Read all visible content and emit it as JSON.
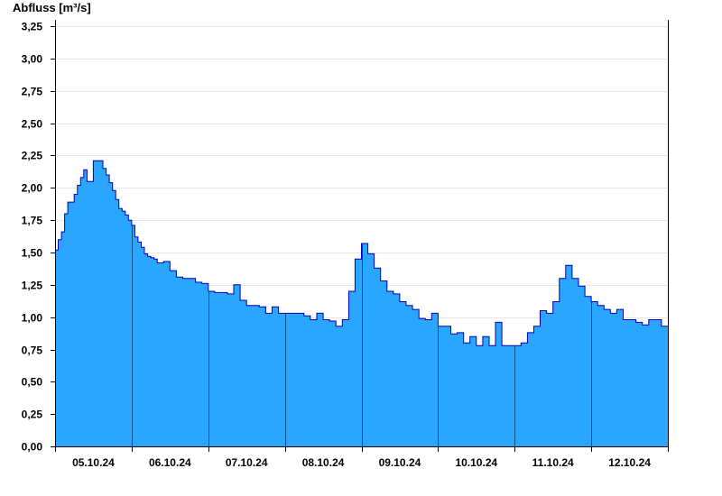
{
  "chart_data": {
    "type": "area",
    "title": "",
    "ylabel": "Abfluss [m³/s]",
    "xlabel": "",
    "ylim": [
      0,
      3.3
    ],
    "yticks": [
      0,
      0.25,
      0.5,
      0.75,
      1.0,
      1.25,
      1.5,
      1.75,
      2.0,
      2.25,
      2.5,
      2.75,
      3.0,
      3.25
    ],
    "ytick_labels": [
      "0,00",
      "0,25",
      "0,50",
      "0,75",
      "1,00",
      "1,25",
      "1,50",
      "1,75",
      "2,00",
      "2,25",
      "2,50",
      "2,75",
      "3,00",
      "3,25"
    ],
    "xlim": [
      "2024-10-04T12:00",
      "2024-10-12T12:00"
    ],
    "xtick_labels": [
      "05.10.24",
      "06.10.24",
      "07.10.24",
      "08.10.24",
      "09.10.24",
      "10.10.24",
      "11.10.24",
      "12.10.24"
    ],
    "day_separators": [
      "2024-10-05T12:00",
      "2024-10-06T12:00",
      "2024-10-07T12:00",
      "2024-10-08T12:00",
      "2024-10-09T12:00",
      "2024-10-10T12:00",
      "2024-10-11T12:00",
      "2024-10-12T12:00"
    ],
    "grid": "horizontal",
    "colors": {
      "fill": "#2aa6ff",
      "line": "#0000b4",
      "separator": "#004f8a",
      "grid": "#e6e6e6"
    },
    "series": [
      {
        "x": [
          "2024-10-04T12:00",
          "2024-10-04T13:00",
          "2024-10-04T14:00",
          "2024-10-04T15:00",
          "2024-10-04T16:00",
          "2024-10-04T17:00",
          "2024-10-04T18:00",
          "2024-10-04T19:00",
          "2024-10-04T20:00",
          "2024-10-04T21:00",
          "2024-10-04T22:00",
          "2024-10-05T00:00",
          "2024-10-05T02:00",
          "2024-10-05T03:00",
          "2024-10-05T04:00",
          "2024-10-05T05:00",
          "2024-10-05T06:00",
          "2024-10-05T07:00",
          "2024-10-05T08:00",
          "2024-10-05T09:00",
          "2024-10-05T10:00",
          "2024-10-05T11:00",
          "2024-10-05T12:00",
          "2024-10-05T13:00",
          "2024-10-05T14:00",
          "2024-10-05T15:00",
          "2024-10-05T16:00",
          "2024-10-05T17:00",
          "2024-10-05T18:00",
          "2024-10-05T19:00",
          "2024-10-05T20:00",
          "2024-10-05T22:00",
          "2024-10-06T00:00",
          "2024-10-06T02:00",
          "2024-10-06T04:00",
          "2024-10-06T06:00",
          "2024-10-06T08:00",
          "2024-10-06T10:00",
          "2024-10-06T12:00",
          "2024-10-06T14:00",
          "2024-10-06T16:00",
          "2024-10-06T18:00",
          "2024-10-06T20:00",
          "2024-10-06T22:00",
          "2024-10-07T00:00",
          "2024-10-07T02:00",
          "2024-10-07T04:00",
          "2024-10-07T06:00",
          "2024-10-07T08:00",
          "2024-10-07T10:00",
          "2024-10-07T12:00",
          "2024-10-07T14:00",
          "2024-10-07T16:00",
          "2024-10-07T18:00",
          "2024-10-07T20:00",
          "2024-10-07T22:00",
          "2024-10-08T00:00",
          "2024-10-08T02:00",
          "2024-10-08T04:00",
          "2024-10-08T06:00",
          "2024-10-08T08:00",
          "2024-10-08T10:00",
          "2024-10-08T12:00",
          "2024-10-08T14:00",
          "2024-10-08T16:00",
          "2024-10-08T18:00",
          "2024-10-08T20:00",
          "2024-10-08T22:00",
          "2024-10-09T00:00",
          "2024-10-09T02:00",
          "2024-10-09T04:00",
          "2024-10-09T06:00",
          "2024-10-09T08:00",
          "2024-10-09T10:00",
          "2024-10-09T12:00",
          "2024-10-09T14:00",
          "2024-10-09T16:00",
          "2024-10-09T18:00",
          "2024-10-09T20:00",
          "2024-10-09T22:00",
          "2024-10-10T00:00",
          "2024-10-10T02:00",
          "2024-10-10T04:00",
          "2024-10-10T06:00",
          "2024-10-10T08:00",
          "2024-10-10T10:00",
          "2024-10-10T12:00",
          "2024-10-10T14:00",
          "2024-10-10T16:00",
          "2024-10-10T18:00",
          "2024-10-10T20:00",
          "2024-10-10T22:00",
          "2024-10-11T00:00",
          "2024-10-11T02:00",
          "2024-10-11T04:00",
          "2024-10-11T06:00",
          "2024-10-11T08:00",
          "2024-10-11T10:00",
          "2024-10-11T12:00",
          "2024-10-11T14:00",
          "2024-10-11T16:00",
          "2024-10-11T18:00",
          "2024-10-11T20:00",
          "2024-10-11T22:00",
          "2024-10-12T00:00",
          "2024-10-12T02:00",
          "2024-10-12T04:00",
          "2024-10-12T06:00",
          "2024-10-12T08:00",
          "2024-10-12T10:00",
          "2024-10-12T12:00"
        ],
        "y": [
          1.52,
          1.6,
          1.66,
          1.8,
          1.89,
          1.89,
          1.95,
          2.02,
          2.08,
          2.14,
          2.05,
          2.21,
          2.21,
          2.15,
          2.1,
          2.04,
          1.98,
          1.91,
          1.84,
          1.82,
          1.79,
          1.75,
          1.71,
          1.62,
          1.58,
          1.54,
          1.49,
          1.47,
          1.46,
          1.45,
          1.42,
          1.43,
          1.36,
          1.31,
          1.3,
          1.3,
          1.27,
          1.26,
          1.2,
          1.19,
          1.19,
          1.18,
          1.25,
          1.13,
          1.09,
          1.09,
          1.08,
          1.03,
          1.08,
          1.03,
          1.03,
          1.03,
          1.03,
          1.01,
          0.98,
          1.03,
          0.98,
          0.97,
          0.93,
          0.98,
          1.2,
          1.45,
          1.57,
          1.49,
          1.38,
          1.28,
          1.2,
          1.18,
          1.12,
          1.09,
          1.06,
          0.99,
          0.98,
          1.03,
          0.93,
          0.93,
          0.87,
          0.88,
          0.8,
          0.85,
          0.78,
          0.85,
          0.78,
          0.96,
          0.78,
          0.78,
          0.78,
          0.8,
          0.88,
          0.93,
          1.05,
          1.03,
          1.12,
          1.3,
          1.4,
          1.3,
          1.24,
          1.16,
          1.12,
          1.09,
          1.06,
          1.03,
          1.06,
          0.98,
          0.98,
          0.96,
          0.94,
          0.98,
          0.98,
          0.93,
          0.93
        ]
      }
    ]
  }
}
